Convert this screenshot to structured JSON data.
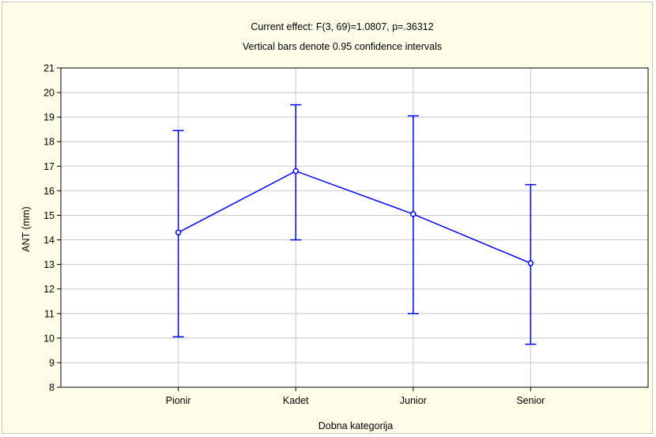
{
  "chart_data": {
    "type": "line",
    "title": "Current effect: F(3, 69)=1.0807, p=.36312",
    "subtitle": "Vertical bars denote 0.95 confidence intervals",
    "xlabel": "Dobna kategorija",
    "ylabel": "ANT (mm)",
    "categories": [
      "Pionir",
      "Kadet",
      "Junior",
      "Senior"
    ],
    "ylim": [
      8,
      21
    ],
    "yticks": [
      8,
      9,
      10,
      11,
      12,
      13,
      14,
      15,
      16,
      17,
      18,
      19,
      20,
      21
    ],
    "grid": true,
    "series": [
      {
        "values": [
          14.3,
          16.8,
          15.05,
          13.05
        ],
        "ci_lower": [
          10.05,
          14.0,
          11.0,
          9.75
        ],
        "ci_upper": [
          18.45,
          19.5,
          19.05,
          16.25
        ]
      }
    ],
    "colors": {
      "line": "#0000ff",
      "grid": "#c8c8c8",
      "background": "#fefee8"
    }
  }
}
